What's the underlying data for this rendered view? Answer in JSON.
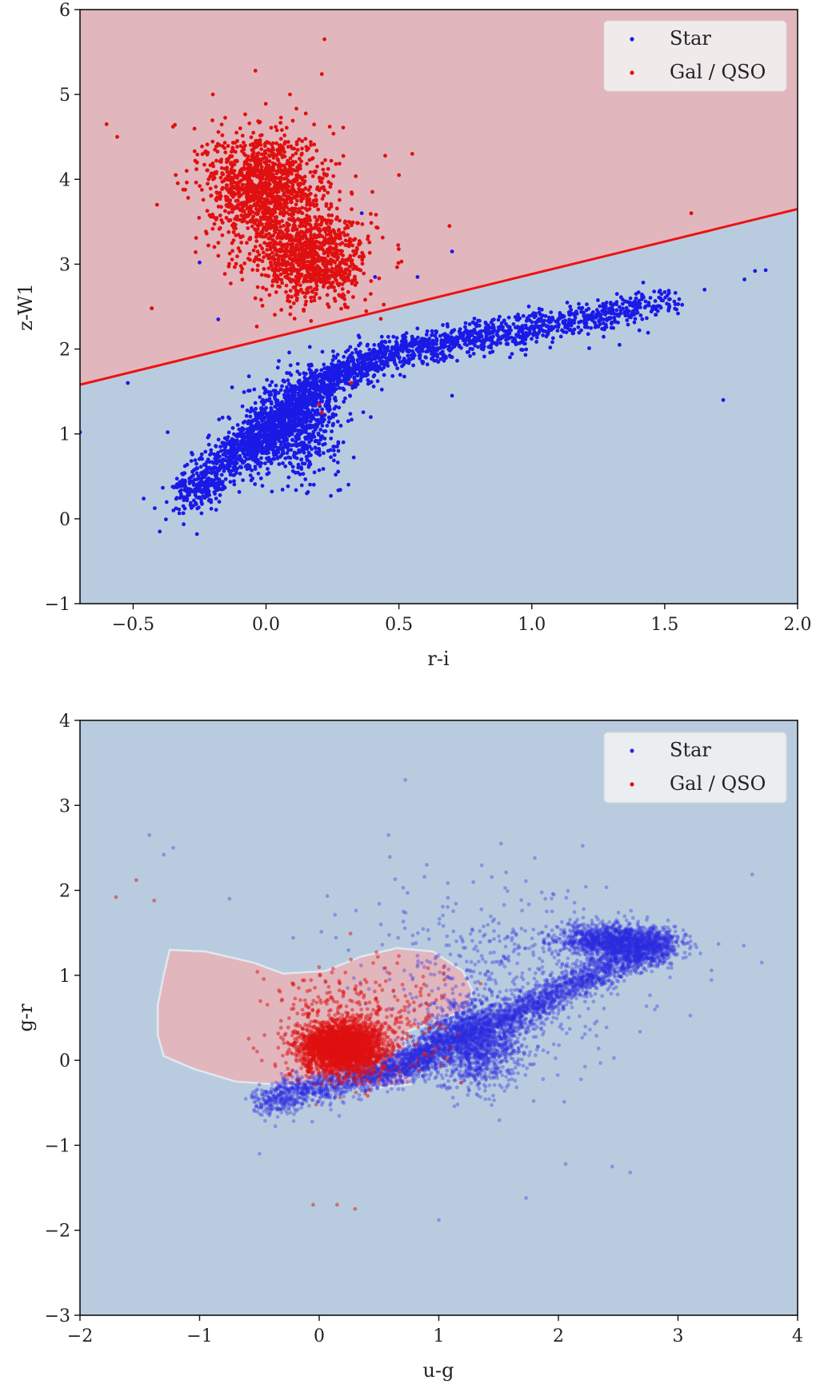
{
  "chart_data": [
    {
      "type": "scatter",
      "title": "",
      "xlabel": "r-i",
      "ylabel": "z-W1",
      "xlim": [
        -0.7,
        2.0
      ],
      "ylim": [
        -1,
        6
      ],
      "xticks": [
        -0.5,
        0.0,
        0.5,
        1.0,
        1.5,
        2.0
      ],
      "xtick_labels": [
        "−0.5",
        "0.0",
        "0.5",
        "1.0",
        "1.5",
        "2.0"
      ],
      "yticks": [
        -1,
        0,
        1,
        2,
        3,
        4,
        5,
        6
      ],
      "ytick_labels": [
        "−1",
        "0",
        "1",
        "2",
        "3",
        "4",
        "5",
        "6"
      ],
      "grid": false,
      "legend_position": "top-right",
      "background_colors": {
        "upper_region": "#e2b6bd",
        "lower_region": "#b9ccdf"
      },
      "decision_boundary": {
        "type": "line",
        "points": [
          [
            -0.7,
            1.58
          ],
          [
            2.0,
            3.65
          ]
        ],
        "color": "#ee1111"
      },
      "series": [
        {
          "name": "Star",
          "color": "#1a1ae6",
          "clusters": [
            {
              "path": [
                [
                  -0.3,
                  0.2
                ],
                [
                  -0.2,
                  0.5
                ],
                [
                  -0.1,
                  0.8
                ],
                [
                  0.0,
                  1.0
                ],
                [
                  0.1,
                  1.3
                ],
                [
                  0.2,
                  1.55
                ],
                [
                  0.3,
                  1.75
                ],
                [
                  0.45,
                  1.95
                ],
                [
                  0.65,
                  2.05
                ],
                [
                  0.9,
                  2.2
                ],
                [
                  1.2,
                  2.35
                ],
                [
                  1.5,
                  2.55
                ]
              ],
              "count": 2600,
              "spread": 0.09
            },
            {
              "center": [
                0.1,
                1.1
              ],
              "count": 700,
              "sx": 0.09,
              "sy": 0.28
            }
          ],
          "points": [
            [
              -0.7,
              1.02
            ],
            [
              -0.52,
              1.6
            ],
            [
              -0.4,
              -0.15
            ],
            [
              -0.37,
              1.02
            ],
            [
              -0.26,
              -0.18
            ],
            [
              -0.25,
              3.02
            ],
            [
              -0.18,
              2.35
            ],
            [
              -0.43,
              2.48
            ],
            [
              1.72,
              1.4
            ],
            [
              1.8,
              2.82
            ],
            [
              1.84,
              2.92
            ],
            [
              1.88,
              2.93
            ],
            [
              1.65,
              2.7
            ],
            [
              0.7,
              1.45
            ],
            [
              1.33,
              2.05
            ],
            [
              0.57,
              2.85
            ],
            [
              0.7,
              3.15
            ],
            [
              0.41,
              2.85
            ],
            [
              0.36,
              3.6
            ]
          ]
        },
        {
          "name": "Gal / QSO",
          "color": "#e01010",
          "clusters": [
            {
              "center": [
                -0.02,
                3.95
              ],
              "count": 1000,
              "sx": 0.1,
              "sy": 0.32
            },
            {
              "center": [
                0.18,
                3.05
              ],
              "count": 800,
              "sx": 0.1,
              "sy": 0.25
            },
            {
              "center": [
                0.08,
                3.5
              ],
              "count": 400,
              "sx": 0.13,
              "sy": 0.4
            }
          ],
          "points": [
            [
              -0.6,
              4.65
            ],
            [
              -0.56,
              4.5
            ],
            [
              -0.35,
              4.62
            ],
            [
              0.22,
              5.65
            ],
            [
              -0.04,
              5.28
            ],
            [
              0.21,
              5.24
            ],
            [
              -0.2,
              5.0
            ],
            [
              0.09,
              5.0
            ],
            [
              1.6,
              3.6
            ],
            [
              0.69,
              3.45
            ],
            [
              0.55,
              4.3
            ],
            [
              0.5,
              4.05
            ],
            [
              -0.41,
              3.7
            ],
            [
              -0.43,
              2.48
            ],
            [
              0.32,
              1.6
            ],
            [
              0.2,
              1.35
            ],
            [
              0.21,
              1.25
            ]
          ]
        }
      ]
    },
    {
      "type": "scatter",
      "title": "",
      "xlabel": "u-g",
      "ylabel": "g-r",
      "xlim": [
        -2,
        4
      ],
      "ylim": [
        -3,
        4
      ],
      "xticks": [
        -2,
        -1,
        0,
        1,
        2,
        3,
        4
      ],
      "xtick_labels": [
        "−2",
        "−1",
        "0",
        "1",
        "2",
        "3",
        "4"
      ],
      "yticks": [
        -3,
        -2,
        -1,
        0,
        1,
        2,
        3,
        4
      ],
      "ytick_labels": [
        "−3",
        "−2",
        "−1",
        "0",
        "1",
        "2",
        "3",
        "4"
      ],
      "grid": false,
      "legend_position": "top-right",
      "background_colors": {
        "main": "#b9ccdf",
        "region": "#e2b6bd",
        "region_edge": "#dfe8f0"
      },
      "decision_region": [
        [
          -1.25,
          1.3
        ],
        [
          -0.95,
          1.28
        ],
        [
          -0.55,
          1.15
        ],
        [
          -0.3,
          1.02
        ],
        [
          0.05,
          1.05
        ],
        [
          0.35,
          1.22
        ],
        [
          0.65,
          1.32
        ],
        [
          0.95,
          1.28
        ],
        [
          1.2,
          1.05
        ],
        [
          1.28,
          0.82
        ],
        [
          1.25,
          0.6
        ],
        [
          0.95,
          0.45
        ],
        [
          0.72,
          0.33
        ],
        [
          0.72,
          -0.05
        ],
        [
          0.78,
          -0.28
        ],
        [
          0.5,
          -0.32
        ],
        [
          0.1,
          -0.3
        ],
        [
          -0.2,
          -0.3
        ],
        [
          -0.7,
          -0.25
        ],
        [
          -1.05,
          -0.1
        ],
        [
          -1.3,
          0.05
        ],
        [
          -1.35,
          0.3
        ],
        [
          -1.35,
          0.65
        ],
        [
          -1.3,
          1.0
        ]
      ],
      "series": [
        {
          "name": "Star",
          "color": "#2a2ae0",
          "alpha": 0.35,
          "clusters": [
            {
              "path": [
                [
                  -0.5,
                  -0.5
                ],
                [
                  0.0,
                  -0.3
                ],
                [
                  0.5,
                  -0.15
                ],
                [
                  0.8,
                  0.0
                ],
                [
                  1.0,
                  0.2
                ],
                [
                  1.4,
                  0.4
                ],
                [
                  1.8,
                  0.65
                ],
                [
                  2.2,
                  0.95
                ],
                [
                  2.6,
                  1.2
                ],
                [
                  2.9,
                  1.35
                ]
              ],
              "count": 3800,
              "spread": 0.1
            },
            {
              "center": [
                2.5,
                1.4
              ],
              "count": 1400,
              "sx": 0.25,
              "sy": 0.1
            },
            {
              "center": [
                1.3,
                0.2
              ],
              "count": 1300,
              "sx": 0.2,
              "sy": 0.25
            },
            {
              "center": [
                1.6,
                1.0
              ],
              "count": 500,
              "sx": 0.6,
              "sy": 0.5
            }
          ],
          "points": [
            [
              0.72,
              3.3
            ],
            [
              0.58,
              2.65
            ],
            [
              -1.42,
              2.65
            ],
            [
              -1.3,
              2.42
            ],
            [
              -1.22,
              2.5
            ],
            [
              1.52,
              2.55
            ],
            [
              0.9,
              2.3
            ],
            [
              -0.75,
              1.9
            ],
            [
              1.73,
              -1.62
            ],
            [
              2.06,
              -1.22
            ],
            [
              2.45,
              -1.25
            ],
            [
              2.6,
              -1.32
            ],
            [
              3.7,
              1.15
            ],
            [
              3.55,
              1.35
            ],
            [
              -0.5,
              -1.1
            ],
            [
              1.0,
              -1.88
            ]
          ]
        },
        {
          "name": "Gal / QSO",
          "color": "#e01010",
          "alpha": 0.5,
          "clusters": [
            {
              "center": [
                0.18,
                0.15
              ],
              "count": 2600,
              "sx": 0.17,
              "sy": 0.15
            },
            {
              "center": [
                0.3,
                0.4
              ],
              "count": 400,
              "sx": 0.35,
              "sy": 0.35
            }
          ],
          "points": [
            [
              -1.7,
              1.92
            ],
            [
              -1.53,
              2.12
            ],
            [
              -1.38,
              1.88
            ],
            [
              -0.05,
              -1.7
            ],
            [
              0.15,
              -1.7
            ],
            [
              0.3,
              -1.75
            ]
          ]
        }
      ]
    }
  ]
}
